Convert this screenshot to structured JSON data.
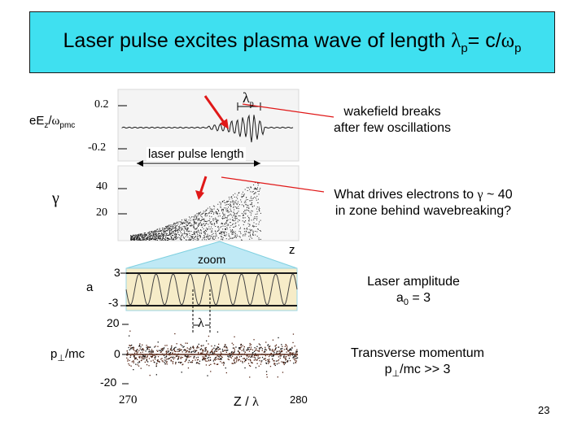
{
  "colors": {
    "title_bg": "#3fe0f0",
    "arrow_red": "#e01818",
    "zoom_band": "#f6ecc8",
    "zoom_edge": "#7fd0e0",
    "trace_dark": "#1a1a1a",
    "trace_brown": "#5a2a1a"
  },
  "title": {
    "text": "Laser pulse excites plasma wave of length",
    "sym": "λ",
    "sub": "p",
    "eq": "= c/",
    "omega": "ω",
    "sub2": "p"
  },
  "panel_top": {
    "ylabel_main": "eE",
    "ylabel_sub1": "z",
    "ylabel_slash": "/",
    "ylabel_omega": "ω",
    "ylabel_sub2": "p",
    "ylabel_rest": "mc",
    "tick_top": "0.2",
    "tick_bottom": "-0.2",
    "lambda_marker": "λ",
    "lambda_sub": "p",
    "pulse_label": "laser pulse length"
  },
  "panel_gamma": {
    "ylabel": "γ",
    "tick_top": "40",
    "tick_bottom": "20",
    "z_label": "z",
    "zoom_label": "zoom"
  },
  "notes": {
    "wakefield": [
      "wakefield breaks",
      "after few oscillations"
    ],
    "electrons_l1_a": "What drives electrons to",
    "electrons_l1_sym": "γ",
    "electrons_l1_b": "~ 40",
    "electrons_l2": "in zone behind wavebreaking?",
    "laser_amp": "Laser amplitude",
    "laser_a0": "a",
    "laser_a0_sub": "0",
    "laser_a0_val": "= 3",
    "transverse": "Transverse momentum",
    "transverse_p": "p",
    "transverse_perp": "⊥",
    "transverse_rest": "/mc >> 3"
  },
  "panel_a": {
    "ylabel": "a",
    "tick_top": "3",
    "tick_bottom": "-3",
    "lambda": "λ"
  },
  "panel_p": {
    "ylabel_p": "p",
    "ylabel_perp": "⊥",
    "ylabel_rest": "/mc",
    "tick_top": "20",
    "tick_mid": "0",
    "tick_bottom": "-20"
  },
  "x_axis": {
    "start": "270",
    "label": "Z",
    "slash": "/",
    "lambda": "λ",
    "end": "280"
  },
  "page_number": "23"
}
